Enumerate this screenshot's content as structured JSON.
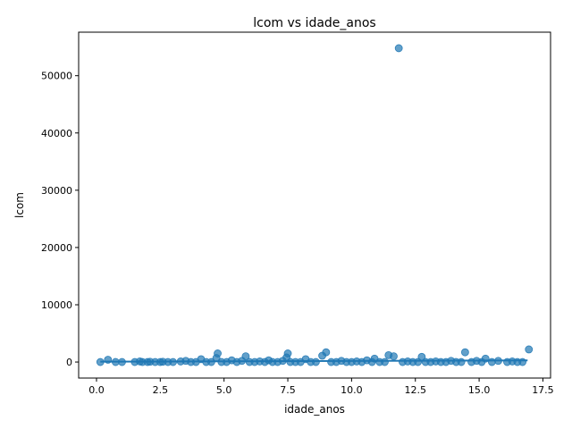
{
  "chart_data": {
    "type": "scatter",
    "title": "lcom vs idade_anos",
    "xlabel": "idade_anos",
    "ylabel": "lcom",
    "xlim": [
      -0.7,
      17.8
    ],
    "ylim": [
      -2800,
      57600
    ],
    "xticks": [
      0.0,
      2.5,
      5.0,
      7.5,
      10.0,
      12.5,
      15.0,
      17.5
    ],
    "xtick_labels": [
      "0.0",
      "2.5",
      "5.0",
      "7.5",
      "10.0",
      "12.5",
      "15.0",
      "17.5"
    ],
    "yticks": [
      0,
      10000,
      20000,
      30000,
      40000,
      50000
    ],
    "ytick_labels": [
      "0",
      "10000",
      "20000",
      "30000",
      "40000",
      "50000"
    ],
    "grid": false,
    "point_color": "#1f77b4",
    "point_alpha": 0.7,
    "trend_line": {
      "x": [
        0.15,
        16.9
      ],
      "y": [
        60,
        280
      ]
    },
    "points": {
      "x": [
        0.15,
        0.45,
        0.75,
        1.0,
        1.5,
        1.7,
        1.8,
        2.0,
        2.1,
        2.3,
        2.5,
        2.6,
        2.8,
        3.0,
        3.3,
        3.5,
        3.7,
        3.9,
        4.1,
        4.3,
        4.5,
        4.7,
        4.75,
        4.9,
        5.1,
        5.3,
        5.5,
        5.7,
        5.85,
        6.0,
        6.2,
        6.4,
        6.6,
        6.75,
        6.9,
        7.1,
        7.3,
        7.45,
        7.5,
        7.6,
        7.8,
        8.0,
        8.2,
        8.4,
        8.6,
        8.85,
        9.0,
        9.2,
        9.4,
        9.6,
        9.8,
        10.0,
        10.2,
        10.4,
        10.6,
        10.8,
        10.9,
        11.1,
        11.3,
        11.45,
        11.65,
        11.85,
        12.0,
        12.2,
        12.4,
        12.6,
        12.75,
        12.9,
        13.1,
        13.3,
        13.5,
        13.7,
        13.9,
        14.1,
        14.3,
        14.45,
        14.7,
        14.9,
        15.1,
        15.25,
        15.5,
        15.75,
        16.1,
        16.3,
        16.5,
        16.7,
        16.95
      ],
      "y": [
        0,
        400,
        0,
        0,
        0,
        100,
        0,
        0,
        50,
        0,
        0,
        50,
        0,
        0,
        100,
        200,
        0,
        0,
        500,
        0,
        0,
        700,
        1500,
        0,
        0,
        300,
        0,
        200,
        1000,
        0,
        0,
        100,
        0,
        300,
        0,
        0,
        200,
        800,
        1500,
        0,
        0,
        0,
        500,
        0,
        0,
        1100,
        1700,
        0,
        0,
        200,
        0,
        0,
        100,
        0,
        300,
        0,
        600,
        0,
        0,
        1200,
        1000,
        54800,
        0,
        100,
        0,
        0,
        900,
        0,
        0,
        100,
        0,
        0,
        200,
        0,
        0,
        1700,
        0,
        200,
        0,
        600,
        0,
        200,
        0,
        100,
        0,
        0,
        2200
      ]
    }
  }
}
